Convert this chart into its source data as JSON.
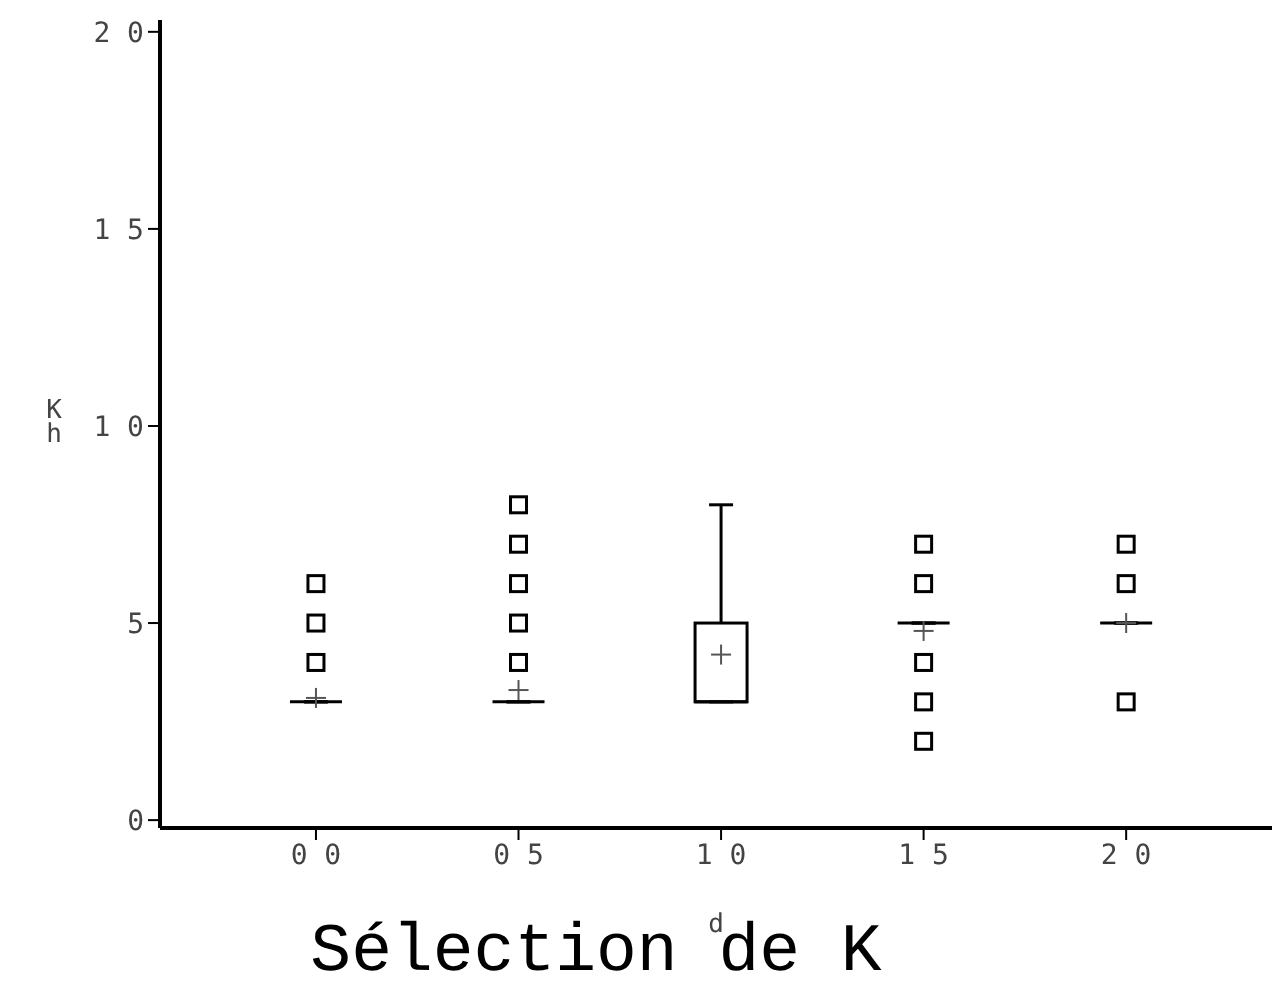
{
  "chart_data": {
    "type": "box",
    "title": "Sélection de K",
    "xlabel": "d",
    "ylabel": "Kh",
    "categories": [
      "0 0",
      "0 5",
      "1 0",
      "1 5",
      "2 0"
    ],
    "color": "#000000",
    "boxes": [
      {
        "low": 3,
        "q1": 3,
        "median": 3,
        "q3": 3,
        "high": 3,
        "mean": 3.1,
        "outliers": [
          4,
          5,
          6
        ]
      },
      {
        "low": 3,
        "q1": 3,
        "median": 3,
        "q3": 3,
        "high": 3,
        "mean": 3.3,
        "outliers": [
          4,
          5,
          6,
          7,
          8
        ]
      },
      {
        "low": 3,
        "q1": 3,
        "median": 3,
        "q3": 5,
        "high": 8,
        "mean": 4.2
      },
      {
        "low": 5,
        "q1": 5,
        "median": 5,
        "q3": 5,
        "high": 5,
        "mean": 4.8,
        "outliers": [
          2,
          3,
          4,
          6,
          7
        ]
      },
      {
        "low": 5,
        "q1": 5,
        "median": 5,
        "q3": 5,
        "high": 5,
        "mean": 5.0,
        "outliers": [
          3,
          6,
          7
        ]
      }
    ],
    "ylim": [
      -0.2,
      20.3
    ],
    "yticks": [
      0,
      5,
      {
        "value": 10,
        "label": "1 0"
      },
      {
        "value": 15,
        "label": "1 5"
      },
      {
        "value": 20,
        "label": "2 0"
      }
    ]
  }
}
